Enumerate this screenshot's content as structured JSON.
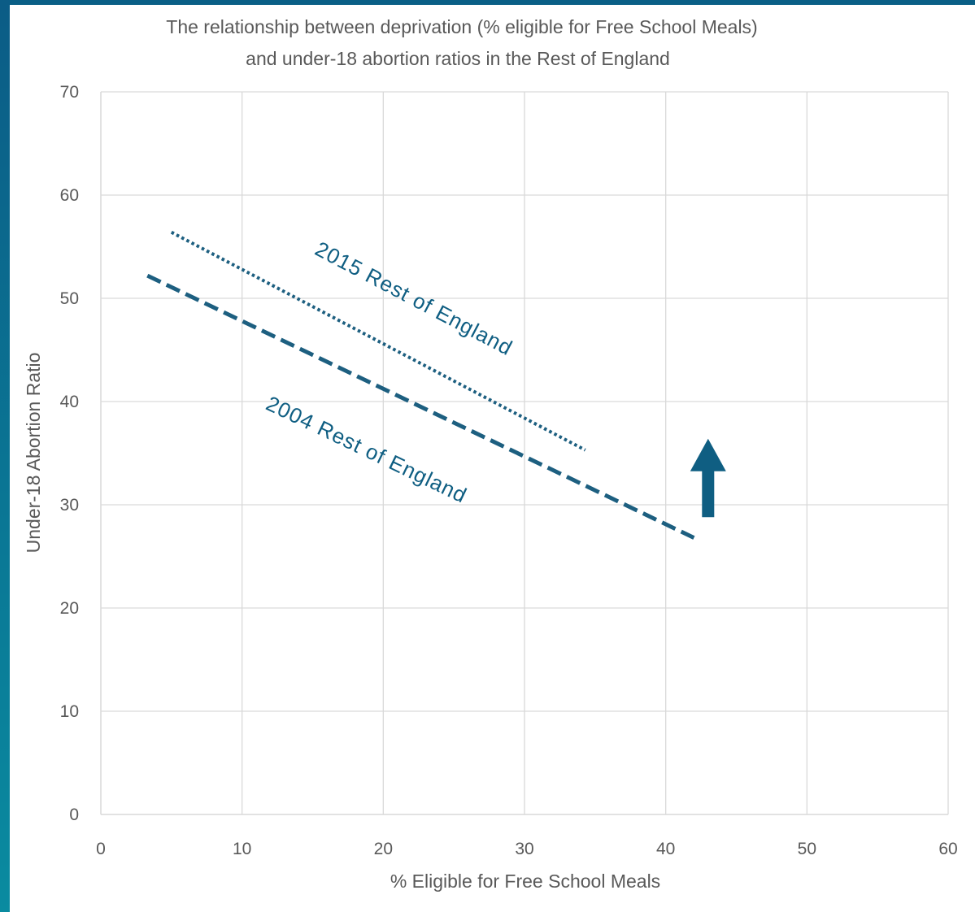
{
  "chart_data": {
    "type": "line",
    "title": [
      "The relationship between deprivation (% eligible for Free School Meals)",
      "and under-18 abortion ratios in the Rest of England"
    ],
    "xlabel": "% Eligible for Free School Meals",
    "ylabel": "Under-18 Abortion Ratio",
    "xlim": [
      0,
      60
    ],
    "ylim": [
      0,
      70
    ],
    "x_ticks": [
      0,
      10,
      20,
      30,
      40,
      50,
      60
    ],
    "y_ticks": [
      0,
      10,
      20,
      30,
      40,
      50,
      60,
      70
    ],
    "grid": true,
    "series": [
      {
        "name": "2004 Rest of England",
        "style": "dashed",
        "x": [
          3.3,
          42.0
        ],
        "y": [
          52.2,
          26.8
        ]
      },
      {
        "name": "2015 Rest of England",
        "style": "dotted",
        "x": [
          5.0,
          34.3
        ],
        "y": [
          56.4,
          35.3
        ]
      }
    ],
    "arrow": {
      "direction": "up",
      "x": 43.0,
      "y_from": 28.8,
      "y_to": 36.4
    }
  },
  "colors": {
    "line": "#1d5f80",
    "arrow": "#0f5e82",
    "label": "#0f5e82",
    "grid": "#d9d9d9",
    "frame_top": "#0a5f86",
    "frame_left_top": "#0b5c86",
    "frame_left_bottom": "#0a8ba0"
  }
}
